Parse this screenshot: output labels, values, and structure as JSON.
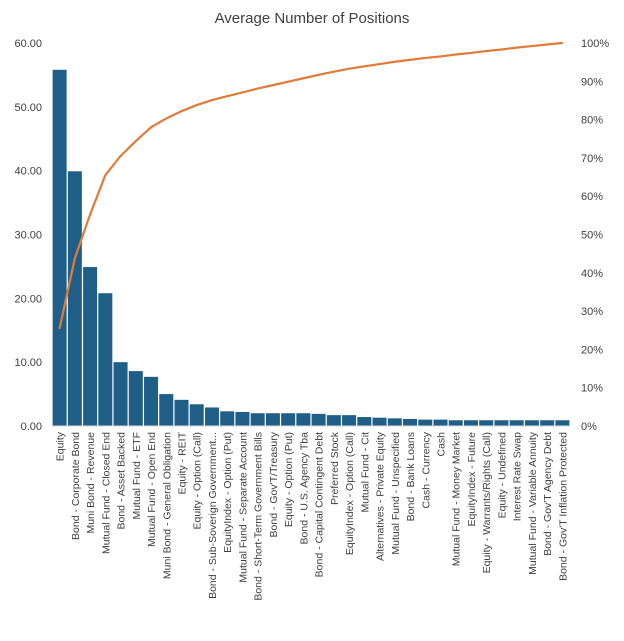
{
  "chart_data": {
    "type": "bar",
    "title": "Average Number of Positions",
    "colors": {
      "bar": "#1f5f87",
      "line": "#e07b39",
      "grid": "#d9d9d9",
      "text": "#404040"
    },
    "categories": [
      "Equity",
      "Bond - Corporate Bond",
      "Muni Bond - Revenue",
      "Mutual Fund - Closed End",
      "Bond - Asset Backed",
      "Mutual Fund - ETF",
      "Mutual Fund - Open End",
      "Muni Bond - General Obligation",
      "Equity - REIT",
      "Equity - Option (Call)",
      "Bond - Sub-Soverign Government...",
      "EquityIndex - Option (Put)",
      "Mutual Fund - Separate Account",
      "Bond - Short-Term Government Bills",
      "Bond - Gov'T/Treasury",
      "Equity - Option (Put)",
      "Bond - U.S. Agency Tba",
      "Bond - Capital Contingent Debt",
      "Preferred Stock",
      "EquityIndex - Option (Call)",
      "Mutual Fund - Cit",
      "Alternatives - Private Equity",
      "Mutual Fund - Unspecified",
      "Bond - Bank Loans",
      "Cash - Currency",
      "Cash",
      "Mutual Fund - Money Market",
      "EquityIndex - Future",
      "Equity - Warrants/Rights (Call)",
      "Equity - Undefined",
      "Interest Rate Swap",
      "Mutual Fund - Variable Annuity",
      "Bond - Gov'T Agency Debt",
      "Bond - Gov'T Inflation Protected"
    ],
    "series": [
      {
        "type": "bar",
        "axis": "left",
        "values": [
          55.8,
          39.9,
          24.9,
          20.8,
          10.0,
          8.6,
          7.7,
          5.0,
          4.1,
          3.4,
          2.9,
          2.3,
          2.2,
          2.0,
          2.0,
          2.0,
          2.0,
          1.9,
          1.7,
          1.7,
          1.4,
          1.3,
          1.2,
          1.1,
          1.0,
          1.0,
          0.9,
          0.9,
          0.9,
          0.9,
          0.9,
          0.9,
          0.9,
          0.9
        ]
      },
      {
        "type": "line",
        "axis": "right",
        "values": [
          25.5,
          43.8,
          55.2,
          65.5,
          70.5,
          74.4,
          78.0,
          80.3,
          82.2,
          83.8,
          85.1,
          86.1,
          87.1,
          88.1,
          89.0,
          89.9,
          90.8,
          91.7,
          92.5,
          93.3,
          93.9,
          94.5,
          95.1,
          95.6,
          96.1,
          96.5,
          97.0,
          97.4,
          97.9,
          98.3,
          98.8,
          99.2,
          99.6,
          100.0
        ]
      }
    ],
    "y_left": {
      "min": 0,
      "max": 60,
      "ticks": [
        "0.00",
        "10.00",
        "20.00",
        "30.00",
        "40.00",
        "50.00",
        "60.00"
      ]
    },
    "y_right": {
      "min": 0,
      "max": 100,
      "ticks": [
        "0%",
        "10%",
        "20%",
        "30%",
        "40%",
        "50%",
        "60%",
        "70%",
        "80%",
        "90%",
        "100%"
      ]
    },
    "grid": false,
    "legend": "none"
  }
}
